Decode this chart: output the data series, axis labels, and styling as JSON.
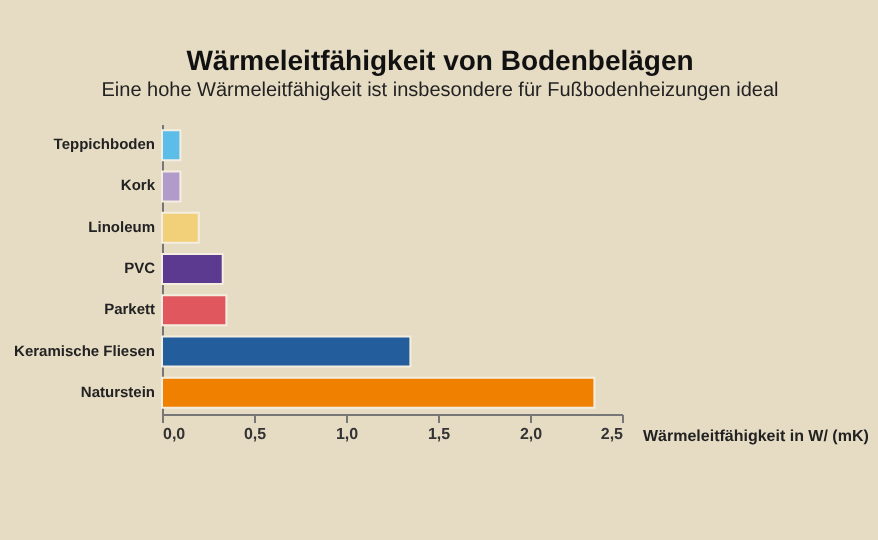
{
  "chart_data": {
    "type": "bar",
    "orientation": "horizontal",
    "title": "Wärmeleitfähigkeit von Bodenbelägen",
    "subtitle": "Eine hohe Wärmeleitfähigkeit ist insbesondere für Fußbodenheizungen ideal",
    "categories": [
      "Teppichboden",
      "Kork",
      "Linoleum",
      "PVC",
      "Parkett",
      "Keramische Fliesen",
      "Naturstein"
    ],
    "values": [
      0.1,
      0.1,
      0.2,
      0.33,
      0.35,
      1.35,
      2.35
    ],
    "colors": [
      "#5bbde8",
      "#b09bcb",
      "#f2d07a",
      "#5c3a8f",
      "#e0575e",
      "#245d9c",
      "#f08000"
    ],
    "xlabel": "Wärmeleitfähigkeit in W/ (mK)",
    "xlim": [
      0,
      2.5
    ],
    "xticks": [
      {
        "value": 0,
        "label": "0,0"
      },
      {
        "value": 0.5,
        "label": "0,5"
      },
      {
        "value": 1,
        "label": "1,0"
      },
      {
        "value": 1.5,
        "label": "1,5"
      },
      {
        "value": 2,
        "label": "2,0"
      },
      {
        "value": 2.5,
        "label": "2,5"
      }
    ],
    "grid": false,
    "legend": false
  }
}
